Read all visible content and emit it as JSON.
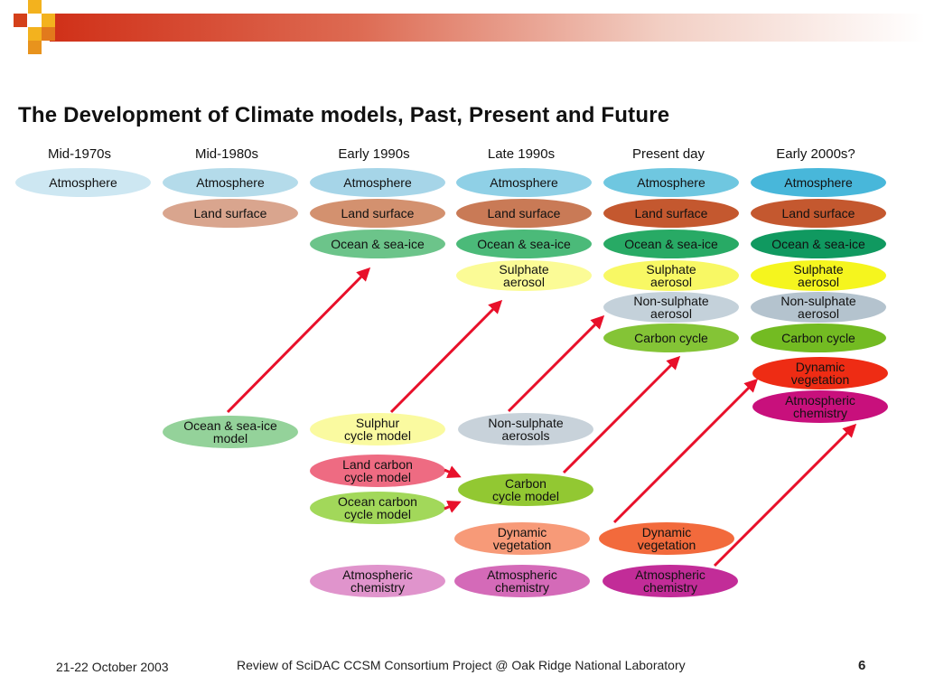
{
  "title": "The Development of Climate models, Past, Present and Future",
  "eras": [
    "Mid-1970s",
    "Mid-1980s",
    "Early 1990s",
    "Late 1990s",
    "Present day",
    "Early 2000s?"
  ],
  "components": {
    "atmosphere": "Atmosphere",
    "land_surface": "Land surface",
    "ocean_sea_ice": "Ocean & sea-ice",
    "sulphate_aerosol": [
      "Sulphate",
      "aerosol"
    ],
    "non_sulphate_aerosol": [
      "Non-sulphate",
      "aerosol"
    ],
    "carbon_cycle": "Carbon cycle",
    "dynamic_vegetation": [
      "Dynamic",
      "vegetation"
    ],
    "atmospheric_chemistry": [
      "Atmospheric",
      "chemistry"
    ]
  },
  "new_models": {
    "ocean_sea_ice_model": [
      "Ocean & sea-ice",
      "model"
    ],
    "sulphur_cycle_model": [
      "Sulphur",
      "cycle model"
    ],
    "non_sulphate_aerosols": [
      "Non-sulphate",
      "aerosols"
    ],
    "land_carbon_cycle_model": [
      "Land carbon",
      "cycle model"
    ],
    "ocean_carbon_cycle_model": [
      "Ocean carbon",
      "cycle model"
    ],
    "carbon_cycle_model": [
      "Carbon",
      "cycle model"
    ],
    "dynamic_vegetation_late": [
      "Dynamic",
      "vegetation"
    ],
    "dynamic_vegetation_present": [
      "Dynamic",
      "vegetation"
    ],
    "atmospheric_chemistry_early": [
      "Atmospheric",
      "chemistry"
    ],
    "atmospheric_chemistry_late": [
      "Atmospheric",
      "chemistry"
    ],
    "atmospheric_chemistry_present": [
      "Atmospheric",
      "chemistry"
    ]
  },
  "footer": {
    "date": "21-22 October 2003",
    "center": "Review of SciDAC CCSM Consortium Project @ Oak Ridge National Laboratory",
    "page": "6"
  },
  "colors": {
    "arrow": "#e8102a",
    "atmosphere": [
      "#cde7f2",
      "#b4dbea",
      "#a6d5e8",
      "#8fd0e6",
      "#6fc7e0",
      "#48b7da"
    ],
    "land_surface": [
      "#d9a58e",
      "#d3916f",
      "#c97a56",
      "#c4582f"
    ],
    "ocean_sea_ice": [
      "#6cc48a",
      "#4bba79",
      "#28aa65",
      "#109960"
    ],
    "sulphate_aerosol": [
      "#fbfb96",
      "#f8f864",
      "#f5f51e"
    ],
    "non_sulphate_aerosol": [
      "#c4d1da",
      "#b4c3ce"
    ],
    "carbon_cycle": [
      "#84c436",
      "#73bb22"
    ],
    "dynamic_vegetation_current": "#ee2c14",
    "atmospheric_chemistry_current": "#c8107c"
  }
}
